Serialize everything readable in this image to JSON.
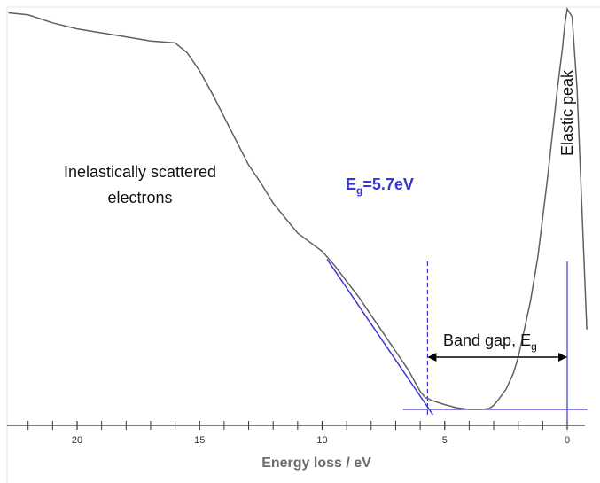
{
  "chart_data": {
    "type": "line",
    "title": "",
    "xlabel": "Energy loss / eV",
    "ylabel": "",
    "xlim": [
      22.8,
      -0.9
    ],
    "x_reversed": true,
    "ylim": [
      0,
      1
    ],
    "grid": false,
    "legend": "none",
    "x_ticks_major": [
      20,
      15,
      10,
      5,
      0
    ],
    "x_ticks_minor_step": 1,
    "series": [
      {
        "name": "",
        "color": "#606060",
        "x": [
          22.8,
          22.0,
          21.0,
          20.0,
          19.0,
          18.0,
          17.0,
          16.0,
          15.5,
          15.0,
          14.5,
          14.0,
          13.5,
          13.0,
          12.5,
          12.0,
          11.0,
          10.0,
          9.5,
          9.0,
          8.5,
          8.0,
          7.5,
          7.0,
          6.5,
          6.0,
          5.8,
          5.5,
          5.0,
          4.5,
          4.0,
          3.5,
          3.2,
          3.0,
          2.8,
          2.5,
          2.2,
          2.0,
          1.8,
          1.5,
          1.2,
          1.0,
          0.8,
          0.6,
          0.4,
          0.2,
          0.1,
          0.0,
          -0.2,
          -0.4,
          -0.6,
          -0.8
        ],
        "y": [
          0.99,
          0.985,
          0.965,
          0.95,
          0.94,
          0.93,
          0.92,
          0.915,
          0.89,
          0.845,
          0.79,
          0.73,
          0.67,
          0.61,
          0.565,
          0.515,
          0.44,
          0.395,
          0.36,
          0.32,
          0.28,
          0.235,
          0.19,
          0.145,
          0.1,
          0.045,
          0.03,
          0.022,
          0.012,
          0.004,
          0.0,
          0.0,
          0.002,
          0.01,
          0.025,
          0.05,
          0.09,
          0.13,
          0.185,
          0.27,
          0.38,
          0.48,
          0.58,
          0.69,
          0.8,
          0.9,
          0.96,
          1.0,
          0.98,
          0.8,
          0.5,
          0.2
        ]
      }
    ],
    "fit_line": {
      "color": "#3a35d6",
      "x": [
        9.8,
        5.7
      ],
      "y": [
        0.375,
        0.0
      ]
    },
    "baseline": {
      "color": "#3a35d6",
      "x": [
        6.7,
        -0.9
      ],
      "y": [
        0.0,
        0.0
      ]
    },
    "band_gap_marker": {
      "x": 5.7,
      "style": "dashed",
      "color": "#3a35d6"
    },
    "zero_marker": {
      "x": 0,
      "style": "solid",
      "color": "#3a35d6"
    },
    "annotations": {
      "inelastic_line1": "Inelastically scattered",
      "inelastic_line2": "electrons",
      "eg_prefix": "E",
      "eg_sub": "g",
      "eg_value": "=5.7eV",
      "band_gap": "Band gap, E",
      "band_gap_sub": "g",
      "elastic_peak": "Elastic peak"
    }
  }
}
